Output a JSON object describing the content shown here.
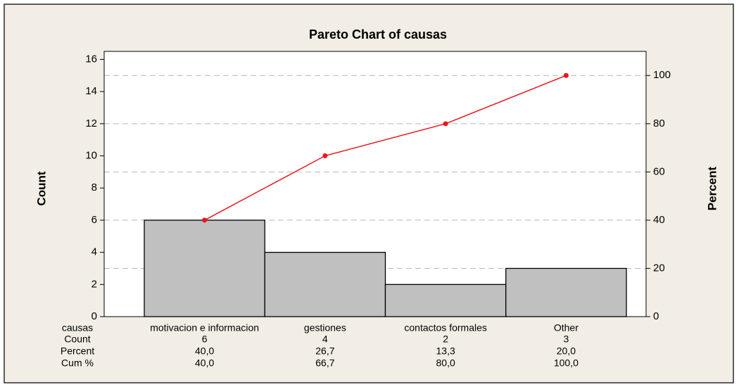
{
  "chart_data": {
    "type": "pareto",
    "title": "Pareto Chart of causas",
    "ylabel": "Count",
    "y2label": "Percent",
    "x_label": "causas",
    "categories": [
      "motivacion e informacion",
      "gestiones",
      "contactos formales",
      "Other"
    ],
    "series": [
      {
        "name": "Count",
        "color": "#c0c0c0",
        "values": [
          6,
          4,
          2,
          3
        ]
      },
      {
        "name": "Cum %",
        "color": "#e8161c",
        "axis": "y2",
        "values": [
          40,
          66.7,
          80,
          100
        ],
        "value_labels": [
          "40,0",
          "66,7",
          "80,0",
          "100,0"
        ]
      }
    ],
    "percent": {
      "name": "Percent",
      "values": [
        40,
        26.7,
        13.3,
        20
      ],
      "value_labels": [
        "40,0",
        "26,7",
        "13,3",
        "20,0"
      ]
    },
    "ylim": [
      0,
      16.5
    ],
    "yticks": [
      0,
      2,
      4,
      6,
      8,
      10,
      12,
      14,
      16
    ],
    "y2lim": [
      0,
      110
    ],
    "y2ticks": [
      0,
      20,
      40,
      60,
      80,
      100
    ],
    "grid": true
  }
}
